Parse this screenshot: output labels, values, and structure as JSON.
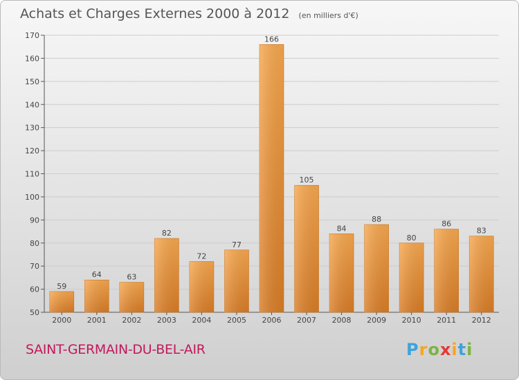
{
  "header": {
    "title": "Achats et Charges Externes 2000 à 2012",
    "subtitle": "(en milliers d'€)"
  },
  "footer": {
    "commune": "SAINT-GERMAIN-DU-BEL-AIR",
    "logo": "Proxiti",
    "logo_colors": [
      "#3fa2dc",
      "#f5a623",
      "#7cb342",
      "#e53935",
      "#f5a623",
      "#3fa2dc",
      "#7cb342"
    ]
  },
  "colors": {
    "bar_top": "#f7a84f",
    "bar_bottom": "#d97d26",
    "grid": "#cccccc",
    "axis": "#555555",
    "commune": "#c2185b"
  },
  "chart_data": {
    "type": "bar",
    "categories": [
      "2000",
      "2001",
      "2002",
      "2003",
      "2004",
      "2005",
      "2006",
      "2007",
      "2008",
      "2009",
      "2010",
      "2011",
      "2012"
    ],
    "values": [
      59,
      64,
      63,
      82,
      72,
      77,
      166,
      105,
      84,
      88,
      80,
      86,
      83
    ],
    "ylim": [
      50,
      170
    ],
    "yticks": [
      50,
      60,
      70,
      80,
      90,
      100,
      110,
      120,
      130,
      140,
      150,
      160,
      170
    ],
    "grid": true,
    "title": "Achats et Charges Externes 2000 à 2012",
    "xlabel": "",
    "ylabel": ""
  }
}
